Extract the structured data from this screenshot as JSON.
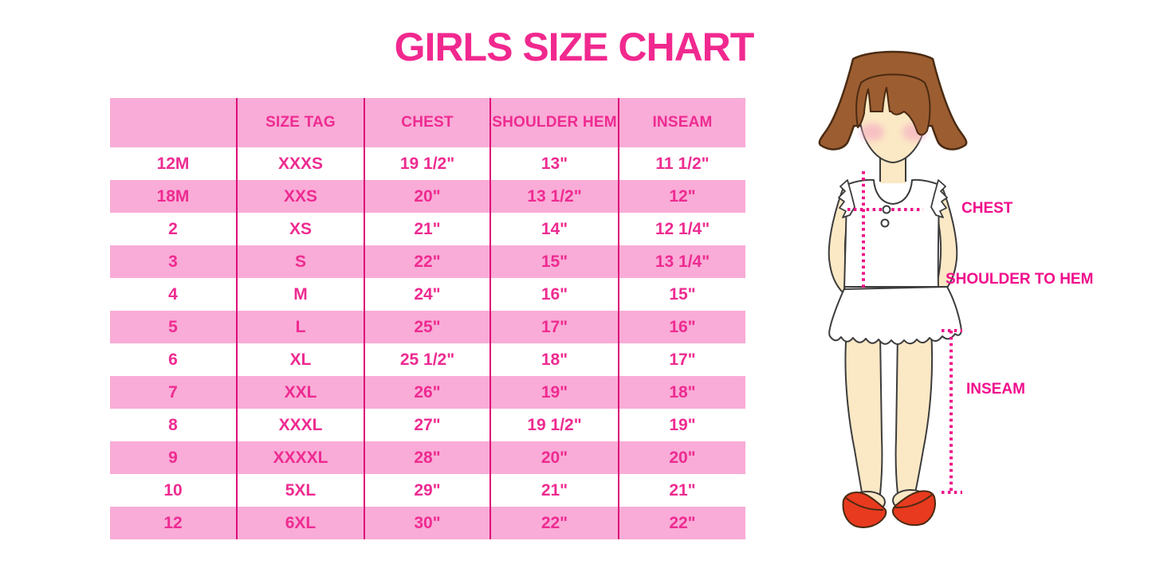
{
  "title": "GIRLS SIZE CHART",
  "table": {
    "headers": [
      "",
      "SIZE TAG",
      "CHEST",
      "SHOULDER HEM",
      "INSEAM"
    ],
    "rows": [
      [
        "12M",
        "XXXS",
        "19 1/2\"",
        "13\"",
        "11 1/2\""
      ],
      [
        "18M",
        "XXS",
        "20\"",
        "13 1/2\"",
        "12\""
      ],
      [
        "2",
        "XS",
        "21\"",
        "14\"",
        "12 1/4\""
      ],
      [
        "3",
        "S",
        "22\"",
        "15\"",
        "13 1/4\""
      ],
      [
        "4",
        "M",
        "24\"",
        "16\"",
        "15\""
      ],
      [
        "5",
        "L",
        "25\"",
        "17\"",
        "16\""
      ],
      [
        "6",
        "XL",
        "25 1/2\"",
        "18\"",
        "17\""
      ],
      [
        "7",
        "XXL",
        "26\"",
        "19\"",
        "18\""
      ],
      [
        "8",
        "XXXL",
        "27\"",
        "19 1/2\"",
        "19\""
      ],
      [
        "9",
        "XXXXL",
        "28\"",
        "20\"",
        "20\""
      ],
      [
        "10",
        "5XL",
        "29\"",
        "21\"",
        "21\""
      ],
      [
        "12",
        "6XL",
        "30\"",
        "22\"",
        "22\""
      ]
    ]
  },
  "figure": {
    "chest_label": "CHEST",
    "shoulder_hem_label": "SHOULDER TO HEM",
    "inseam_label": "INSEAM"
  },
  "colors": {
    "title_pink": "#F1298F",
    "table_text_pink": "#EE2B91",
    "row_pink_background": "#F9ACD7",
    "grid_line_magenta": "#DD0878",
    "label_magenta": "#F00D8C",
    "dotted_line_magenta": "#ED1287",
    "hair_brown": "#9C5D31",
    "skin_tone": "#FBE8C5",
    "shoe_red": "#E83A1F"
  }
}
